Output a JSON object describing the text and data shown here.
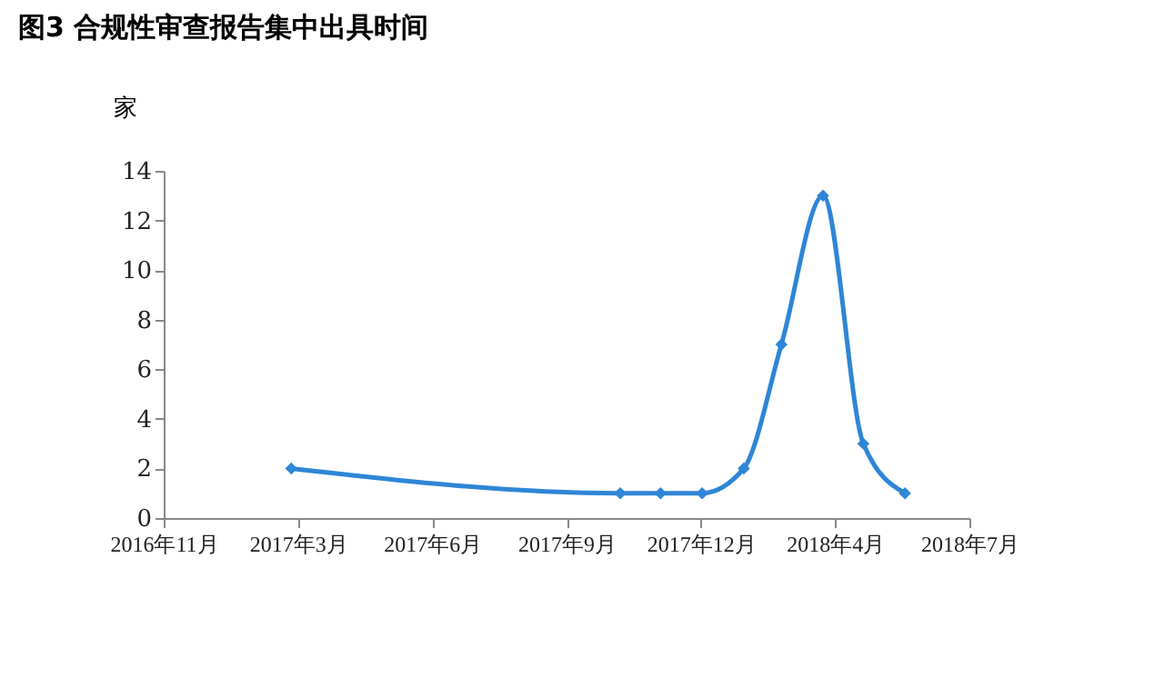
{
  "chart_data": {
    "type": "line",
    "title": "图3 合规性审查报告集中出具时间",
    "ylabel": "家",
    "x": [
      "2017-02-28",
      "2017-10-31",
      "2017-11-30",
      "2017-12-31",
      "2018-01-31",
      "2018-02-28",
      "2018-03-31",
      "2018-04-30",
      "2018-05-31"
    ],
    "series": [
      {
        "color": "#2e86d6",
        "values": [
          2,
          1,
          1,
          1,
          2,
          7,
          13,
          3,
          1
        ]
      }
    ],
    "xlim": [
      "2016-11-25",
      "2018-07-18"
    ],
    "xticks": [
      {
        "value": "2016-11-25",
        "label": "2016年11月"
      },
      {
        "value": "2017-03-05",
        "label": "2017年3月"
      },
      {
        "value": "2017-06-13",
        "label": "2017年6月"
      },
      {
        "value": "2017-09-21",
        "label": "2017年9月"
      },
      {
        "value": "2017-12-30",
        "label": "2017年12月"
      },
      {
        "value": "2018-04-09",
        "label": "2018年4月"
      },
      {
        "value": "2018-07-18",
        "label": "2018年7月"
      }
    ],
    "ylim": [
      0,
      14
    ],
    "yticks": [
      0,
      2,
      4,
      6,
      8,
      10,
      12,
      14
    ],
    "grid": false,
    "legend": false,
    "marker": "diamond",
    "line_style": "solid"
  }
}
